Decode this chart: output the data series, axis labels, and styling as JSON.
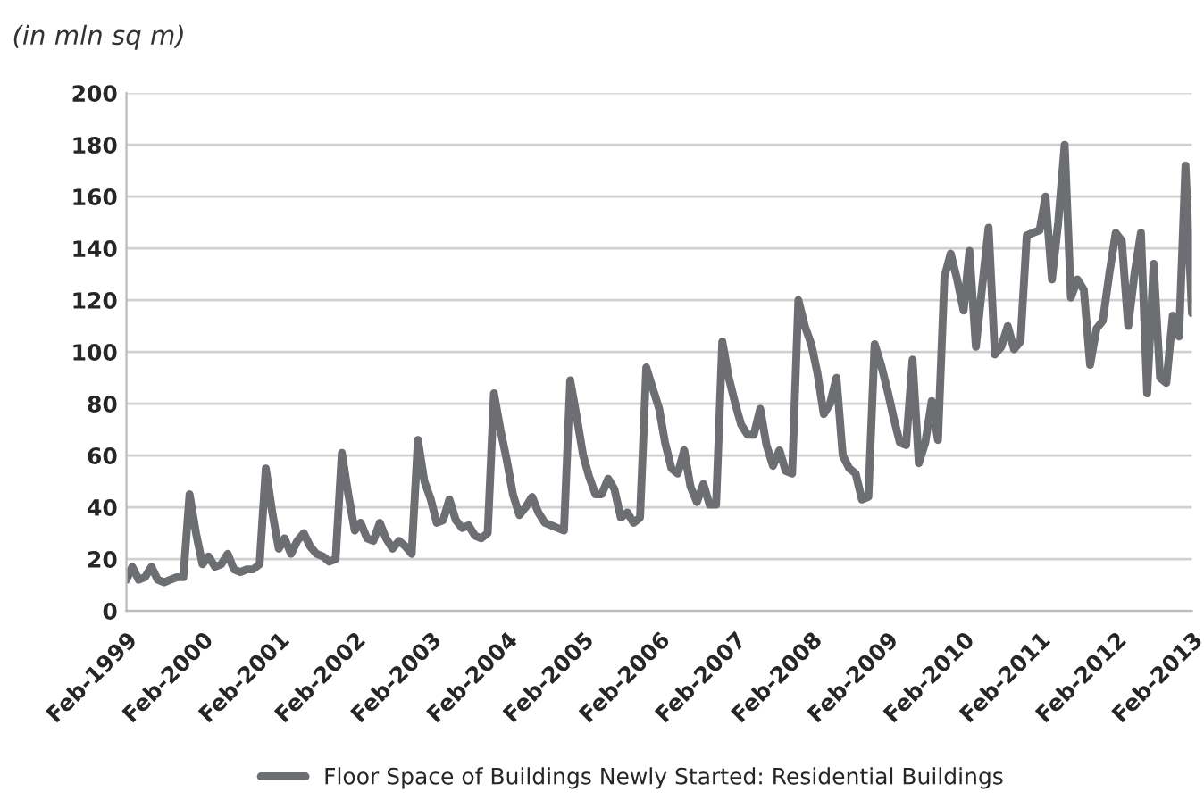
{
  "chart_data": {
    "type": "line",
    "subtitle": "(in mln sq m)",
    "x": [
      "1999-02",
      "1999-03",
      "1999-04",
      "1999-05",
      "1999-06",
      "1999-07",
      "1999-08",
      "1999-09",
      "1999-10",
      "1999-11",
      "1999-12",
      "2000-01",
      "2000-02",
      "2000-03",
      "2000-04",
      "2000-05",
      "2000-06",
      "2000-07",
      "2000-08",
      "2000-09",
      "2000-10",
      "2000-11",
      "2000-12",
      "2001-01",
      "2001-02",
      "2001-03",
      "2001-04",
      "2001-05",
      "2001-06",
      "2001-07",
      "2001-08",
      "2001-09",
      "2001-10",
      "2001-11",
      "2001-12",
      "2002-01",
      "2002-02",
      "2002-03",
      "2002-04",
      "2002-05",
      "2002-06",
      "2002-07",
      "2002-08",
      "2002-09",
      "2002-10",
      "2002-11",
      "2002-12",
      "2003-01",
      "2003-02",
      "2003-03",
      "2003-04",
      "2003-05",
      "2003-06",
      "2003-07",
      "2003-08",
      "2003-09",
      "2003-10",
      "2003-11",
      "2003-12",
      "2004-01",
      "2004-02",
      "2004-03",
      "2004-04",
      "2004-05",
      "2004-06",
      "2004-07",
      "2004-08",
      "2004-09",
      "2004-10",
      "2004-11",
      "2004-12",
      "2005-01",
      "2005-02",
      "2005-03",
      "2005-04",
      "2005-05",
      "2005-06",
      "2005-07",
      "2005-08",
      "2005-09",
      "2005-10",
      "2005-11",
      "2005-12",
      "2006-01",
      "2006-02",
      "2006-03",
      "2006-04",
      "2006-05",
      "2006-06",
      "2006-07",
      "2006-08",
      "2006-09",
      "2006-10",
      "2006-11",
      "2006-12",
      "2007-01",
      "2007-02",
      "2007-03",
      "2007-04",
      "2007-05",
      "2007-06",
      "2007-07",
      "2007-08",
      "2007-09",
      "2007-10",
      "2007-11",
      "2007-12",
      "2008-01",
      "2008-02",
      "2008-03",
      "2008-04",
      "2008-05",
      "2008-06",
      "2008-07",
      "2008-08",
      "2008-09",
      "2008-10",
      "2008-11",
      "2008-12",
      "2009-01",
      "2009-02",
      "2009-03",
      "2009-04",
      "2009-05",
      "2009-06",
      "2009-07",
      "2009-08",
      "2009-09",
      "2009-10",
      "2009-11",
      "2009-12",
      "2010-01",
      "2010-02",
      "2010-03",
      "2010-04",
      "2010-05",
      "2010-06",
      "2010-07",
      "2010-08",
      "2010-09",
      "2010-10",
      "2010-11",
      "2010-12",
      "2011-01",
      "2011-02",
      "2011-03",
      "2011-04",
      "2011-05",
      "2011-06",
      "2011-07",
      "2011-08",
      "2011-09",
      "2011-10",
      "2011-11",
      "2011-12",
      "2012-01",
      "2012-02",
      "2012-03",
      "2012-04",
      "2012-05",
      "2012-06",
      "2012-07",
      "2012-08",
      "2012-09",
      "2012-10",
      "2012-11",
      "2012-12",
      "2013-01",
      "2013-02"
    ],
    "series": [
      {
        "name": "Floor Space of Buildings Newly Started: Residential Buildings",
        "color": "#6d6e71",
        "values": [
          12,
          17,
          12,
          13,
          17,
          12,
          11,
          12,
          13,
          13,
          45,
          30,
          18,
          21,
          17,
          18,
          22,
          16,
          15,
          16,
          16,
          18,
          55,
          38,
          24,
          28,
          22,
          27,
          30,
          25,
          22,
          21,
          19,
          20,
          61,
          45,
          31,
          34,
          28,
          27,
          34,
          28,
          24,
          27,
          25,
          22,
          66,
          50,
          43,
          34,
          35,
          43,
          35,
          32,
          33,
          29,
          28,
          30,
          84,
          70,
          58,
          45,
          37,
          40,
          44,
          38,
          34,
          33,
          32,
          31,
          89,
          75,
          60,
          52,
          45,
          45,
          51,
          47,
          36,
          38,
          34,
          36,
          94,
          86,
          78,
          65,
          55,
          53,
          62,
          48,
          42,
          49,
          41,
          41,
          104,
          90,
          80,
          72,
          68,
          68,
          78,
          64,
          56,
          62,
          54,
          53,
          120,
          110,
          103,
          92,
          76,
          80,
          90,
          60,
          55,
          53,
          43,
          44,
          103,
          95,
          85,
          75,
          65,
          64,
          97,
          57,
          65,
          81,
          66,
          129,
          138,
          128,
          116,
          139,
          102,
          125,
          148,
          99,
          102,
          110,
          101,
          104,
          145,
          146,
          147,
          160,
          128,
          150,
          180,
          121,
          128,
          124,
          95,
          109,
          112,
          130,
          146,
          143,
          110,
          130,
          146,
          84,
          134,
          90,
          88,
          114,
          106,
          172,
          115
        ]
      }
    ],
    "xlim": [
      "1999-02",
      "2013-02"
    ],
    "xticks": [
      {
        "value": "1999-02",
        "label": "Feb-1999"
      },
      {
        "value": "2000-02",
        "label": "Feb-2000"
      },
      {
        "value": "2001-02",
        "label": "Feb-2001"
      },
      {
        "value": "2002-02",
        "label": "Feb-2002"
      },
      {
        "value": "2003-02",
        "label": "Feb-2003"
      },
      {
        "value": "2004-02",
        "label": "Feb-2004"
      },
      {
        "value": "2005-02",
        "label": "Feb-2005"
      },
      {
        "value": "2006-02",
        "label": "Feb-2006"
      },
      {
        "value": "2007-02",
        "label": "Feb-2007"
      },
      {
        "value": "2008-02",
        "label": "Feb-2008"
      },
      {
        "value": "2009-02",
        "label": "Feb-2009"
      },
      {
        "value": "2010-02",
        "label": "Feb-2010"
      },
      {
        "value": "2011-02",
        "label": "Feb-2011"
      },
      {
        "value": "2012-02",
        "label": "Feb-2012"
      },
      {
        "value": "2013-02",
        "label": "Feb-2013"
      }
    ],
    "ylim": [
      0,
      200
    ],
    "yticks": [
      0,
      20,
      40,
      60,
      80,
      100,
      120,
      140,
      160,
      180,
      200
    ],
    "grid": "y",
    "legend": "bottom",
    "marker": "none",
    "line_style": "solid"
  }
}
